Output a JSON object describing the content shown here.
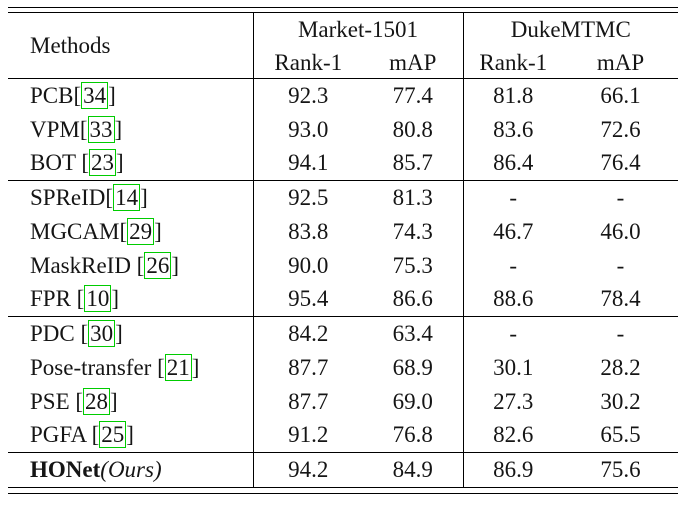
{
  "colors": {
    "citation_box_border": "#00cc00",
    "rule": "#000000",
    "text": "#151515",
    "background": "#ffffff"
  },
  "table": {
    "header": {
      "methods_label": "Methods",
      "column_groups": [
        "Market-1501",
        "DukeMTMC"
      ],
      "sub_headers": [
        "Rank-1",
        "mAP",
        "Rank-1",
        "mAP"
      ]
    },
    "groups": [
      {
        "rows": [
          {
            "method_parts": [
              {
                "text": "PCB[",
                "style": "normal"
              },
              {
                "text": "34",
                "style": "cite"
              },
              {
                "text": "]",
                "style": "normal"
              }
            ],
            "values": [
              "92.3",
              "77.4",
              "81.8",
              "66.1"
            ]
          },
          {
            "method_parts": [
              {
                "text": "VPM[",
                "style": "normal"
              },
              {
                "text": "33",
                "style": "cite"
              },
              {
                "text": "]",
                "style": "normal"
              }
            ],
            "values": [
              "93.0",
              "80.8",
              "83.6",
              "72.6"
            ]
          },
          {
            "method_parts": [
              {
                "text": "BOT [",
                "style": "normal"
              },
              {
                "text": "23",
                "style": "cite"
              },
              {
                "text": "]",
                "style": "normal"
              }
            ],
            "values": [
              "94.1",
              "85.7",
              "86.4",
              "76.4"
            ]
          }
        ]
      },
      {
        "rows": [
          {
            "method_parts": [
              {
                "text": "SPReID[",
                "style": "normal"
              },
              {
                "text": "14",
                "style": "cite"
              },
              {
                "text": "]",
                "style": "normal"
              }
            ],
            "values": [
              "92.5",
              "81.3",
              "-",
              "-"
            ]
          },
          {
            "method_parts": [
              {
                "text": "MGCAM[",
                "style": "normal"
              },
              {
                "text": "29",
                "style": "cite"
              },
              {
                "text": "]",
                "style": "normal"
              }
            ],
            "values": [
              "83.8",
              "74.3",
              "46.7",
              "46.0"
            ]
          },
          {
            "method_parts": [
              {
                "text": "MaskReID [",
                "style": "normal"
              },
              {
                "text": "26",
                "style": "cite"
              },
              {
                "text": "]",
                "style": "normal"
              }
            ],
            "values": [
              "90.0",
              "75.3",
              "-",
              "-"
            ]
          },
          {
            "method_parts": [
              {
                "text": "FPR [",
                "style": "normal"
              },
              {
                "text": "10",
                "style": "cite"
              },
              {
                "text": "]",
                "style": "normal"
              }
            ],
            "values": [
              "95.4",
              "86.6",
              "88.6",
              "78.4"
            ]
          }
        ]
      },
      {
        "rows": [
          {
            "method_parts": [
              {
                "text": "PDC [",
                "style": "normal"
              },
              {
                "text": "30",
                "style": "cite"
              },
              {
                "text": "]",
                "style": "normal"
              }
            ],
            "values": [
              "84.2",
              "63.4",
              "-",
              "-"
            ]
          },
          {
            "method_parts": [
              {
                "text": "Pose-transfer [",
                "style": "normal"
              },
              {
                "text": "21",
                "style": "cite"
              },
              {
                "text": "]",
                "style": "normal"
              }
            ],
            "values": [
              "87.7",
              "68.9",
              "30.1",
              "28.2"
            ]
          },
          {
            "method_parts": [
              {
                "text": "PSE [",
                "style": "normal"
              },
              {
                "text": "28",
                "style": "cite"
              },
              {
                "text": "]",
                "style": "normal"
              }
            ],
            "values": [
              "87.7",
              "69.0",
              "27.3",
              "30.2"
            ]
          },
          {
            "method_parts": [
              {
                "text": "PGFA [",
                "style": "normal"
              },
              {
                "text": "25",
                "style": "cite"
              },
              {
                "text": "]",
                "style": "normal"
              }
            ],
            "values": [
              "91.2",
              "76.8",
              "82.6",
              "65.5"
            ]
          }
        ]
      },
      {
        "rows": [
          {
            "method_parts": [
              {
                "text": "HONet",
                "style": "bold"
              },
              {
                "text": "(",
                "style": "italic"
              },
              {
                "text": "Ours",
                "style": "italic"
              },
              {
                "text": ")",
                "style": "italic"
              }
            ],
            "values": [
              "94.2",
              "84.9",
              "86.9",
              "75.6"
            ]
          }
        ]
      }
    ]
  }
}
